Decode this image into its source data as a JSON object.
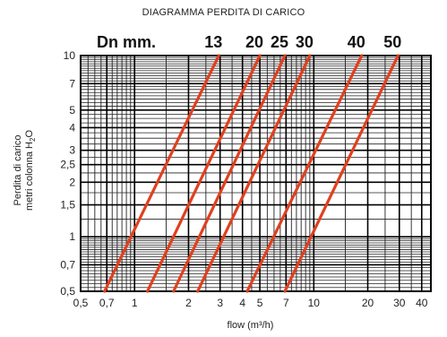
{
  "chart_data": {
    "type": "line",
    "title": "DIAGRAMMA PERDITA DI CARICO",
    "legend_title": "Dn mm.",
    "ylabel": "Perdita di carico",
    "ylabel_line2": "metri colonna H₂O",
    "ylabel_line2_prefix": "metri colonna H",
    "ylabel_line2_sub": "2",
    "ylabel_line2_suffix": "O",
    "xlabel": "flow (m³/h)",
    "x_scale": "log",
    "y_scale": "log",
    "xlim": [
      0.5,
      45
    ],
    "ylim": [
      0.5,
      10
    ],
    "x_ticks": [
      0.5,
      0.7,
      1,
      2,
      3,
      4,
      5,
      7,
      10,
      20,
      30,
      40
    ],
    "x_tick_labels": [
      "0,5",
      "0,7",
      "1",
      "2",
      "3",
      "4",
      "5",
      "7",
      "10",
      "20",
      "30",
      "40"
    ],
    "y_ticks": [
      0.5,
      0.7,
      1,
      1.5,
      2,
      2.5,
      3,
      4,
      5,
      7,
      10
    ],
    "y_tick_labels": [
      "0,5",
      "0,7",
      "1",
      "1,5",
      "2",
      "2,5",
      "3",
      "4",
      "5",
      "7",
      "10"
    ],
    "grid": true,
    "line_color": "#e0401f",
    "series": [
      {
        "name": "13",
        "x": [
          0.68,
          2.95
        ],
        "y": [
          0.5,
          10
        ]
      },
      {
        "name": "20",
        "x": [
          1.18,
          5.0
        ],
        "y": [
          0.5,
          10
        ]
      },
      {
        "name": "25",
        "x": [
          1.65,
          6.9
        ],
        "y": [
          0.5,
          10
        ]
      },
      {
        "name": "30",
        "x": [
          2.25,
          9.5
        ],
        "y": [
          0.5,
          10
        ]
      },
      {
        "name": "40",
        "x": [
          4.25,
          18.5
        ],
        "y": [
          0.5,
          10
        ]
      },
      {
        "name": "50",
        "x": [
          6.9,
          29.5
        ],
        "y": [
          0.5,
          10
        ]
      }
    ]
  }
}
